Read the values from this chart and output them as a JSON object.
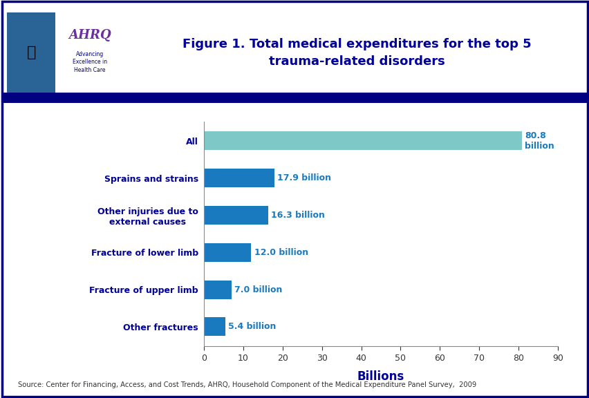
{
  "title": "Figure 1. Total medical expenditures for the top 5\ntrauma-related disorders",
  "categories": [
    "Other fractures",
    "Fracture of upper limb",
    "Fracture of lower limb",
    "Other injuries due to\nexternal causes",
    "Sprains and strains",
    "All"
  ],
  "values": [
    5.4,
    7.0,
    12.0,
    16.3,
    17.9,
    80.8
  ],
  "labels": [
    "5.4 billion",
    "7.0 billion",
    "12.0 billion",
    "16.3 billion",
    "17.9 billion",
    "80.8\nbillion"
  ],
  "bar_colors": [
    "#1a7abf",
    "#1a7abf",
    "#1a7abf",
    "#1a7abf",
    "#1a7abf",
    "#7ec8c8"
  ],
  "xlabel": "Billions",
  "xlim": [
    0,
    90
  ],
  "xticks": [
    0,
    10,
    20,
    30,
    40,
    50,
    60,
    70,
    80,
    90
  ],
  "title_color": "#000099",
  "label_color": "#1a7abf",
  "source_text": "Source: Center for Financing, Access, and Cost Trends, AHRQ, Household Component of the Medical Expenditure Panel Survey,  2009",
  "bg_color": "#ffffff",
  "header_bar_color": "#000080",
  "fig_border_color": "#000080",
  "logo_bg": "#4da6d4",
  "logo_text_color": "#000080",
  "bar_height": 0.5
}
